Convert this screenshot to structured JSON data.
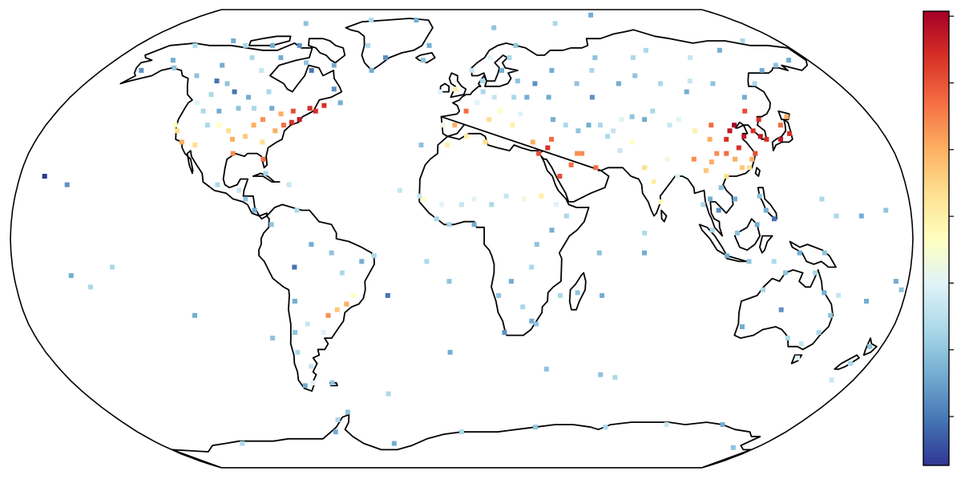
{
  "colormap": [
    "#313695",
    "#4575b4",
    "#74add1",
    "#abd9e9",
    "#e0f3f8",
    "#ffffbf",
    "#fee090",
    "#fdae61",
    "#f46d43",
    "#d73027",
    "#a50026"
  ],
  "colorbar": {
    "tick_count": 7
  },
  "stations": [
    [
      -170,
      22,
      0.0
    ],
    [
      -160,
      19,
      0.15
    ],
    [
      -157,
      -13,
      0.2
    ],
    [
      -140,
      -10,
      0.3
    ],
    [
      -130,
      58,
      0.25
    ],
    [
      -122,
      62,
      0.2
    ],
    [
      -118,
      56,
      0.1
    ],
    [
      -116,
      51,
      0.3
    ],
    [
      -124,
      40,
      0.5
    ],
    [
      -122,
      38,
      0.6
    ],
    [
      -118,
      34,
      0.7
    ],
    [
      -112,
      33,
      0.6
    ],
    [
      -110,
      40,
      0.3
    ],
    [
      -105,
      40,
      0.5
    ],
    [
      -100,
      38,
      0.6
    ],
    [
      -97,
      35,
      0.7
    ],
    [
      -95,
      30,
      0.75
    ],
    [
      -92,
      36,
      0.65
    ],
    [
      -90,
      40,
      0.7
    ],
    [
      -87,
      42,
      0.75
    ],
    [
      -84,
      34,
      0.6
    ],
    [
      -82,
      28,
      0.8
    ],
    [
      -80,
      38,
      0.7
    ],
    [
      -77,
      40,
      0.8
    ],
    [
      -74,
      41,
      0.9
    ],
    [
      -71,
      42,
      0.95
    ],
    [
      -68,
      46,
      0.9
    ],
    [
      -75,
      45,
      0.85
    ],
    [
      -80,
      44,
      0.7
    ],
    [
      -85,
      46,
      0.2
    ],
    [
      -93,
      46,
      0.3
    ],
    [
      -100,
      46,
      0.25
    ],
    [
      -108,
      45,
      0.2
    ],
    [
      -115,
      45,
      0.3
    ],
    [
      -120,
      48,
      0.4
    ],
    [
      -65,
      45,
      0.9
    ],
    [
      -62,
      47,
      0.9
    ],
    [
      -55,
      48,
      0.2
    ],
    [
      -60,
      53,
      0.15
    ],
    [
      -90,
      52,
      0.3
    ],
    [
      -98,
      50,
      0.2
    ],
    [
      -106,
      52,
      0.1
    ],
    [
      -112,
      55,
      0.25
    ],
    [
      -100,
      60,
      0.35
    ],
    [
      -110,
      65,
      0.3
    ],
    [
      -95,
      65,
      0.2
    ],
    [
      -75,
      60,
      0.1
    ],
    [
      -80,
      63,
      0.25
    ],
    [
      -65,
      62,
      0.2
    ],
    [
      -90,
      70,
      0.15
    ],
    [
      -105,
      70,
      0.2
    ],
    [
      -120,
      70,
      0.3
    ],
    [
      -150,
      64,
      0.2
    ],
    [
      -145,
      61,
      0.25
    ],
    [
      -160,
      60,
      0.15
    ],
    [
      -148,
      70,
      0.3
    ],
    [
      -99,
      19,
      0.3
    ],
    [
      -90,
      17,
      0.35
    ],
    [
      -87,
      14,
      0.25
    ],
    [
      -83,
      10,
      0.2
    ],
    [
      -80,
      23,
      0.3
    ],
    [
      -70,
      19,
      0.35
    ],
    [
      -76,
      5,
      0.25
    ],
    [
      -66,
      10,
      0.3
    ],
    [
      -60,
      -2,
      0.2
    ],
    [
      -67,
      -10,
      0.1
    ],
    [
      -52,
      -5,
      0.25
    ],
    [
      -48,
      -12,
      0.3
    ],
    [
      -40,
      -8,
      0.2
    ],
    [
      -35,
      -6,
      0.3
    ],
    [
      -44,
      -20,
      0.5
    ],
    [
      -47,
      -23,
      0.7
    ],
    [
      -51,
      -25,
      0.65
    ],
    [
      -55,
      -27,
      0.75
    ],
    [
      -58,
      -33,
      0.4
    ],
    [
      -64,
      -30,
      0.35
    ],
    [
      -68,
      -22,
      0.2
    ],
    [
      -70,
      -33,
      0.25
    ],
    [
      -71,
      -40,
      0.3
    ],
    [
      -67,
      -45,
      0.35
    ],
    [
      -69,
      -51,
      0.4
    ],
    [
      -73,
      -52,
      0.2
    ],
    [
      -60,
      -51,
      0.25
    ],
    [
      -30,
      -20,
      0.1
    ],
    [
      -14,
      -8,
      0.3
    ],
    [
      -25,
      17,
      0.35
    ],
    [
      -17,
      33,
      0.25
    ],
    [
      -10,
      52,
      0.4
    ],
    [
      -3,
      53,
      0.55
    ],
    [
      -8,
      40,
      0.45
    ],
    [
      -3,
      40,
      0.7
    ],
    [
      2,
      45,
      0.8
    ],
    [
      7,
      48,
      0.4
    ],
    [
      10,
      52,
      0.3
    ],
    [
      15,
      50,
      0.35
    ],
    [
      12,
      42,
      0.6
    ],
    [
      17,
      45,
      0.5
    ],
    [
      22,
      40,
      0.55
    ],
    [
      26,
      44,
      0.4
    ],
    [
      24,
      50,
      0.3
    ],
    [
      30,
      50,
      0.2
    ],
    [
      35,
      55,
      0.15
    ],
    [
      40,
      50,
      0.2
    ],
    [
      27,
      56,
      0.25
    ],
    [
      20,
      60,
      0.2
    ],
    [
      25,
      65,
      0.3
    ],
    [
      15,
      65,
      0.4
    ],
    [
      5,
      60,
      0.35
    ],
    [
      10,
      56,
      0.3
    ],
    [
      -20,
      64,
      0.25
    ],
    [
      -18,
      70,
      0.2
    ],
    [
      -40,
      65,
      0.15
    ],
    [
      -45,
      60,
      0.2
    ],
    [
      -52,
      70,
      0.3
    ],
    [
      30,
      70,
      0.25
    ],
    [
      45,
      60,
      0.2
    ],
    [
      55,
      55,
      0.25
    ],
    [
      60,
      50,
      0.15
    ],
    [
      65,
      60,
      0.3
    ],
    [
      75,
      55,
      0.2
    ],
    [
      85,
      58,
      0.25
    ],
    [
      95,
      55,
      0.3
    ],
    [
      105,
      52,
      0.2
    ],
    [
      110,
      56,
      0.35
    ],
    [
      120,
      55,
      0.25
    ],
    [
      130,
      50,
      0.2
    ],
    [
      140,
      55,
      0.3
    ],
    [
      150,
      60,
      0.2
    ],
    [
      160,
      62,
      0.25
    ],
    [
      170,
      64,
      0.2
    ],
    [
      120,
      65,
      0.35
    ],
    [
      90,
      65,
      0.3
    ],
    [
      70,
      65,
      0.25
    ],
    [
      100,
      68,
      0.3
    ],
    [
      140,
      68,
      0.2
    ],
    [
      40,
      42,
      0.2
    ],
    [
      45,
      40,
      0.3
    ],
    [
      50,
      38,
      0.25
    ],
    [
      55,
      40,
      0.2
    ],
    [
      60,
      40,
      0.3
    ],
    [
      65,
      38,
      0.35
    ],
    [
      70,
      42,
      0.4
    ],
    [
      75,
      43,
      0.25
    ],
    [
      80,
      42,
      0.2
    ],
    [
      85,
      45,
      0.3
    ],
    [
      90,
      40,
      0.35
    ],
    [
      95,
      42,
      0.4
    ],
    [
      100,
      38,
      0.55
    ],
    [
      105,
      35,
      0.7
    ],
    [
      108,
      40,
      0.8
    ],
    [
      112,
      35,
      0.9
    ],
    [
      115,
      38,
      0.95
    ],
    [
      118,
      40,
      1.0
    ],
    [
      120,
      36,
      0.95
    ],
    [
      122,
      30,
      0.85
    ],
    [
      116,
      32,
      0.9
    ],
    [
      110,
      30,
      0.8
    ],
    [
      106,
      30,
      0.75
    ],
    [
      113,
      28,
      0.7
    ],
    [
      115,
      25,
      0.65
    ],
    [
      118,
      25,
      0.6
    ],
    [
      120,
      28,
      0.7
    ],
    [
      125,
      38,
      0.9
    ],
    [
      127,
      36,
      0.95
    ],
    [
      129,
      35,
      0.9
    ],
    [
      126,
      45,
      0.85
    ],
    [
      130,
      42,
      0.9
    ],
    [
      135,
      35,
      0.95
    ],
    [
      140,
      37,
      0.9
    ],
    [
      138,
      40,
      0.8
    ],
    [
      143,
      43,
      0.7
    ],
    [
      96,
      28,
      0.75
    ],
    [
      100,
      24,
      0.65
    ],
    [
      103,
      27,
      0.7
    ],
    [
      108,
      22,
      0.6
    ],
    [
      105,
      18,
      0.25
    ],
    [
      100,
      14,
      0.2
    ],
    [
      97,
      12,
      0.3
    ],
    [
      103,
      10,
      0.15
    ],
    [
      110,
      14,
      0.2
    ],
    [
      120,
      15,
      0.25
    ],
    [
      122,
      10,
      0.2
    ],
    [
      125,
      7,
      0.1
    ],
    [
      118,
      5,
      0.2
    ],
    [
      110,
      2,
      0.25
    ],
    [
      100,
      3,
      0.3
    ],
    [
      106,
      -6,
      0.2
    ],
    [
      115,
      -8,
      0.25
    ],
    [
      125,
      -8,
      0.3
    ],
    [
      135,
      -5,
      0.2
    ],
    [
      145,
      -5,
      0.25
    ],
    [
      150,
      8,
      0.3
    ],
    [
      160,
      8,
      0.2
    ],
    [
      170,
      10,
      0.25
    ],
    [
      175,
      -15,
      0.2
    ],
    [
      145,
      14,
      0.3
    ],
    [
      78,
      20,
      0.55
    ],
    [
      75,
      25,
      0.6
    ],
    [
      80,
      13,
      0.5
    ],
    [
      88,
      22,
      0.4
    ],
    [
      85,
      28,
      0.45
    ],
    [
      72,
      34,
      0.5
    ],
    [
      66,
      31,
      0.35
    ],
    [
      62,
      36,
      0.3
    ],
    [
      50,
      30,
      0.75
    ],
    [
      45,
      26,
      0.8
    ],
    [
      40,
      22,
      0.85
    ],
    [
      55,
      25,
      0.8
    ],
    [
      48,
      30,
      0.75
    ],
    [
      36,
      32,
      0.9
    ],
    [
      32,
      30,
      0.85
    ],
    [
      38,
      35,
      0.8
    ],
    [
      30,
      34,
      0.7
    ],
    [
      10,
      34,
      0.6
    ],
    [
      2,
      36,
      0.55
    ],
    [
      -6,
      33,
      0.55
    ],
    [
      -15,
      14,
      0.5
    ],
    [
      -8,
      12,
      0.4
    ],
    [
      0,
      12,
      0.35
    ],
    [
      5,
      14,
      0.4
    ],
    [
      12,
      12,
      0.3
    ],
    [
      18,
      15,
      0.35
    ],
    [
      25,
      14,
      0.45
    ],
    [
      32,
      15,
      0.55
    ],
    [
      38,
      12,
      0.4
    ],
    [
      42,
      8,
      0.3
    ],
    [
      36,
      3,
      0.2
    ],
    [
      30,
      -2,
      0.25
    ],
    [
      28,
      -10,
      0.3
    ],
    [
      20,
      -15,
      0.2
    ],
    [
      15,
      -20,
      0.25
    ],
    [
      25,
      -24,
      0.3
    ],
    [
      29,
      -29,
      0.2
    ],
    [
      18,
      -33,
      0.15
    ],
    [
      31,
      -30,
      0.25
    ],
    [
      40,
      -20,
      0.3
    ],
    [
      47,
      -19,
      0.25
    ],
    [
      57,
      -20,
      0.2
    ],
    [
      55,
      -5,
      0.25
    ],
    [
      5,
      5,
      0.2
    ],
    [
      -10,
      7,
      0.3
    ],
    [
      -17,
      15,
      0.35
    ],
    [
      -5,
      5,
      0.3
    ],
    [
      152,
      -27,
      0.25
    ],
    [
      145,
      -37,
      0.35
    ],
    [
      138,
      -35,
      0.3
    ],
    [
      131,
      -25,
      0.15
    ],
    [
      117,
      -31,
      0.2
    ],
    [
      122,
      -18,
      0.3
    ],
    [
      130,
      -12,
      0.25
    ],
    [
      142,
      -12,
      0.3
    ],
    [
      147,
      -19,
      0.2
    ],
    [
      153,
      -20,
      0.35
    ],
    [
      150,
      -33,
      0.3
    ],
    [
      147,
      -42,
      0.4
    ],
    [
      175,
      -38,
      0.25
    ],
    [
      172,
      -44,
      0.3
    ],
    [
      170,
      -50,
      0.35
    ],
    [
      165,
      -22,
      0.2
    ],
    [
      178,
      -18,
      0.25
    ],
    [
      -150,
      -17,
      0.3
    ],
    [
      -110,
      -27,
      0.2
    ],
    [
      -80,
      -35,
      0.25
    ],
    [
      -65,
      -65,
      0.3
    ],
    [
      -58,
      -62,
      0.25
    ],
    [
      -40,
      -75,
      0.2
    ],
    [
      0,
      -70,
      0.3
    ],
    [
      40,
      -68,
      0.25
    ],
    [
      78,
      -68,
      0.3
    ],
    [
      110,
      -67,
      0.35
    ],
    [
      140,
      -67,
      0.2
    ],
    [
      166,
      -77,
      0.25
    ],
    [
      -70,
      -70,
      0.2
    ],
    [
      -130,
      -75,
      0.3
    ],
    [
      63,
      -48,
      0.25
    ],
    [
      70,
      -49,
      0.3
    ],
    [
      38,
      -46,
      0.25
    ],
    [
      -5,
      -40,
      0.2
    ],
    [
      -35,
      -55,
      0.3
    ],
    [
      -5,
      -15,
      0.25
    ],
    [
      73,
      -5,
      0.2
    ],
    [
      73,
      2,
      0.3
    ],
    [
      90,
      85,
      0.2
    ],
    [
      60,
      80,
      0.3
    ],
    [
      20,
      78,
      0.25
    ],
    [
      -30,
      82,
      0.2
    ],
    [
      -60,
      82,
      0.3
    ],
    [
      -100,
      80,
      0.25
    ],
    [
      -130,
      72,
      0.2
    ],
    [
      160,
      72,
      0.3
    ]
  ]
}
